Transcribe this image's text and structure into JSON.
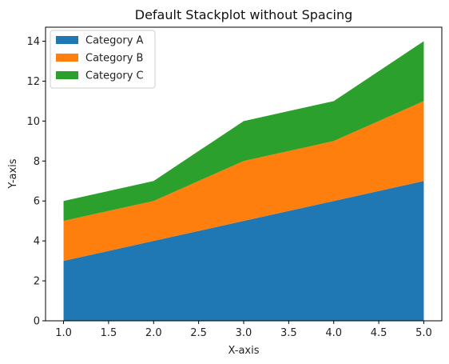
{
  "chart_data": {
    "type": "area",
    "stacked": true,
    "title": "Default Stackplot without Spacing",
    "xlabel": "X-axis",
    "ylabel": "Y-axis",
    "x": [
      1,
      2,
      3,
      4,
      5
    ],
    "series": [
      {
        "name": "Category A",
        "values": [
          3,
          4,
          5,
          6,
          7
        ],
        "color": "#1f77b4"
      },
      {
        "name": "Category B",
        "values": [
          2,
          2,
          3,
          3,
          4
        ],
        "color": "#ff7f0e"
      },
      {
        "name": "Category C",
        "values": [
          1,
          1,
          2,
          2,
          3
        ],
        "color": "#2ca02c"
      }
    ],
    "xlim": [
      0.8,
      5.2
    ],
    "ylim": [
      0,
      14.7
    ],
    "xticks": [
      "1.0",
      "1.5",
      "2.0",
      "2.5",
      "3.0",
      "3.5",
      "4.0",
      "4.5",
      "5.0"
    ],
    "yticks": [
      "0",
      "2",
      "4",
      "6",
      "8",
      "10",
      "12",
      "14"
    ],
    "grid": false,
    "legend_position": "upper-left"
  }
}
